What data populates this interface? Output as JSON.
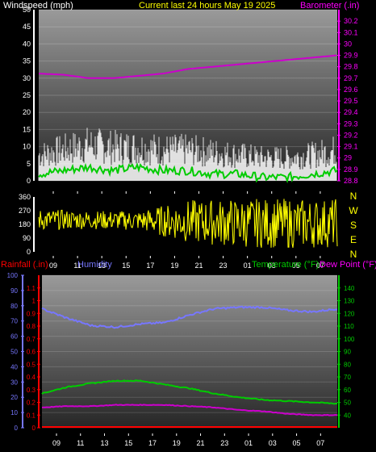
{
  "header": {
    "windspeed_label": "Windspeed (mph)",
    "title": "Current last 24 hours May 19 2025",
    "barometer_label": "Barometer (.in)"
  },
  "mid_header": {
    "rainfall_label": "Rainfall (.in)",
    "humidity_label": "Humidity",
    "temperature_label": "Temperature (°F)",
    "dewpoint_label": "Dew Point (°F)"
  },
  "colors": {
    "wind": "#ffffff",
    "wind_avg": "#00cc00",
    "barometer": "#cc00cc",
    "direction": "#ffff00",
    "rain": "#ff0000",
    "humidity": "#7777ff",
    "temperature": "#00cc00",
    "dewpoint": "#cc00cc",
    "axis_wind": "#ffffff",
    "axis_baro": "#ff00ff",
    "axis_rain": "#ff0000",
    "axis_hum": "#7777ff",
    "axis_temp": "#00cc00"
  },
  "chart_data": [
    {
      "type": "line",
      "name": "wind-barometer",
      "x_ticks": [
        "09",
        "11",
        "13",
        "15",
        "17",
        "19",
        "21",
        "23",
        "01",
        "03",
        "05",
        "07"
      ],
      "left_axis": {
        "label": "Windspeed (mph)",
        "ylim": [
          0,
          50
        ],
        "ticks": [
          "0",
          "5",
          "10",
          "15",
          "20",
          "25",
          "30",
          "35",
          "40",
          "45",
          "50"
        ]
      },
      "right_axis": {
        "label": "Barometer (.in)",
        "ylim": [
          28.8,
          30.3
        ],
        "ticks": [
          "28.8",
          "28.9",
          "29",
          "29.1",
          "29.2",
          "29.3",
          "29.4",
          "29.5",
          "29.6",
          "29.7",
          "29.8",
          "29.9",
          "30",
          "30.1",
          "30.2"
        ]
      },
      "series": [
        {
          "name": "Barometer",
          "axis": "right",
          "x": [
            0,
            2,
            4,
            6,
            8,
            10,
            12,
            14,
            16,
            18,
            20,
            22,
            24
          ],
          "y": [
            29.74,
            29.73,
            29.7,
            29.7,
            29.72,
            29.74,
            29.78,
            29.8,
            29.82,
            29.84,
            29.86,
            29.88,
            29.9
          ]
        },
        {
          "name": "Wind gust",
          "axis": "left",
          "x": [
            0,
            2,
            4,
            6,
            8,
            10,
            12,
            14,
            16,
            18,
            20,
            22,
            24
          ],
          "y": [
            10,
            12,
            14,
            13,
            13,
            12,
            12,
            11,
            10,
            9,
            9,
            10,
            12
          ]
        },
        {
          "name": "Wind average",
          "axis": "left",
          "x": [
            0,
            2,
            4,
            6,
            8,
            10,
            12,
            14,
            16,
            18,
            20,
            22,
            24
          ],
          "y": [
            2,
            3,
            4,
            3,
            4,
            3,
            3,
            2,
            2,
            1,
            1,
            2,
            3
          ]
        }
      ]
    },
    {
      "type": "line",
      "name": "wind-direction",
      "x_ticks": [
        "09",
        "11",
        "13",
        "15",
        "17",
        "19",
        "21",
        "23",
        "01",
        "03",
        "05",
        "07"
      ],
      "left_axis": {
        "ylim": [
          0,
          360
        ],
        "ticks": [
          "0",
          "90",
          "180",
          "270",
          "360"
        ]
      },
      "right_axis_labels": [
        "N",
        "W",
        "S",
        "E",
        "N"
      ],
      "series": [
        {
          "name": "Wind direction",
          "x": [
            0,
            4,
            8,
            12,
            16,
            20,
            24
          ],
          "y_low": [
            140,
            150,
            140,
            60,
            30,
            20,
            30
          ],
          "y_high": [
            280,
            270,
            270,
            340,
            350,
            350,
            350
          ]
        }
      ]
    },
    {
      "type": "line",
      "name": "temperature-humidity",
      "x_ticks": [
        "09",
        "11",
        "13",
        "15",
        "17",
        "19",
        "21",
        "23",
        "01",
        "03",
        "05",
        "07"
      ],
      "left_axis": {
        "ylim": [
          0,
          100
        ],
        "ticks": [
          "0",
          "10",
          "20",
          "30",
          "40",
          "50",
          "60",
          "70",
          "80",
          "90",
          "100"
        ]
      },
      "rain_axis": {
        "ylim": [
          0,
          1.2
        ],
        "ticks": [
          "0",
          "0.1",
          "0.2",
          "0.3",
          "0.4",
          "0.5",
          "0.6",
          "0.7",
          "0.8",
          "0.9",
          "1",
          "1.1"
        ]
      },
      "right_axis": {
        "ylim": [
          30,
          150
        ],
        "ticks": [
          "40",
          "50",
          "60",
          "70",
          "80",
          "90",
          "100",
          "110",
          "120",
          "130",
          "140"
        ]
      },
      "series": [
        {
          "name": "Humidity",
          "axis": "left",
          "x": [
            0,
            2,
            4,
            6,
            8,
            10,
            12,
            14,
            16,
            18,
            20,
            22,
            24
          ],
          "y": [
            78,
            72,
            67,
            66,
            68,
            69,
            74,
            78,
            79,
            79,
            77,
            76,
            78
          ]
        },
        {
          "name": "Temperature",
          "axis": "right",
          "x": [
            0,
            2,
            4,
            6,
            8,
            10,
            12,
            14,
            16,
            18,
            20,
            22,
            24
          ],
          "y": [
            57,
            62,
            65,
            67,
            67,
            64,
            61,
            57,
            54,
            52,
            51,
            50,
            49
          ]
        },
        {
          "name": "Dew Point",
          "axis": "right",
          "x": [
            0,
            2,
            4,
            6,
            8,
            10,
            12,
            14,
            16,
            18,
            20,
            22,
            24
          ],
          "y": [
            46,
            47,
            47,
            48,
            48,
            48,
            47,
            46,
            44,
            43,
            41,
            40,
            40
          ]
        },
        {
          "name": "Rainfall",
          "axis": "rain",
          "x": [
            0,
            24
          ],
          "y": [
            0,
            0
          ]
        }
      ]
    }
  ]
}
